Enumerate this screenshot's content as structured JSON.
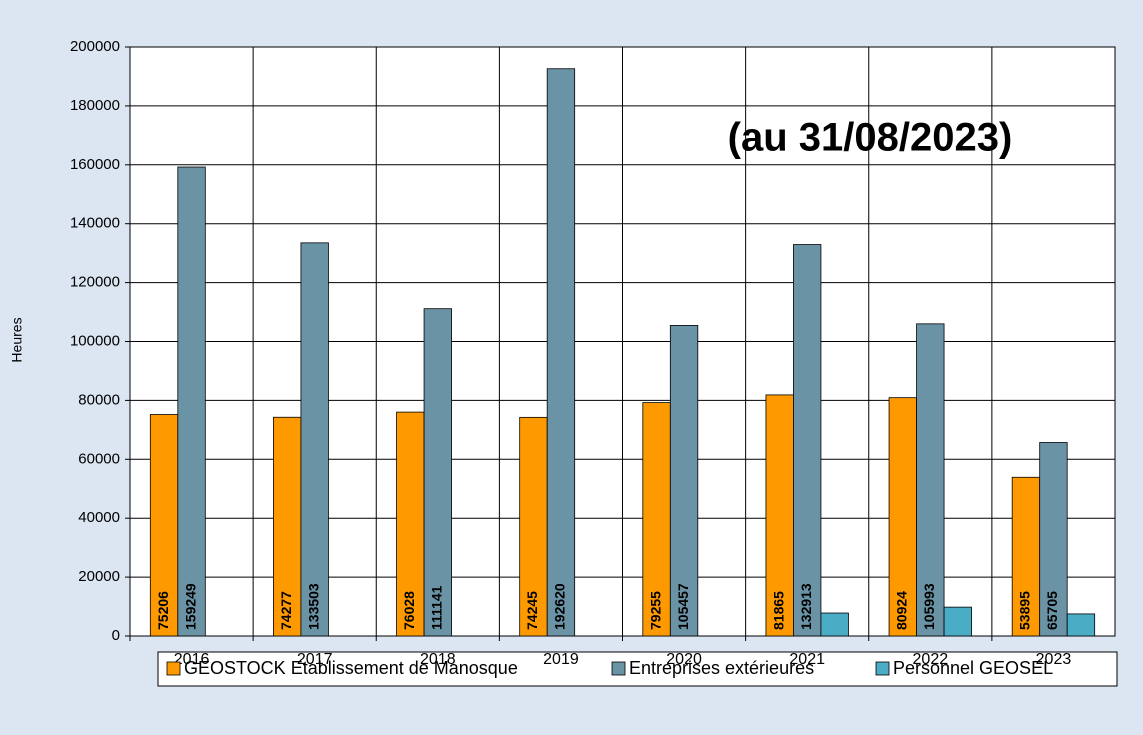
{
  "chart_data": {
    "type": "bar",
    "annotation": "(au 31/08/2023)",
    "y_label": "Heures",
    "categories": [
      "2016",
      "2017",
      "2018",
      "2019",
      "2020",
      "2021",
      "2022",
      "2023"
    ],
    "series": [
      {
        "name": "GEOSTOCK Etablissement de Manosque",
        "color": "#ff9900",
        "labels": true,
        "values": [
          75206,
          74277,
          76028,
          74245,
          79255,
          81865,
          80924,
          53895
        ]
      },
      {
        "name": "Entreprises extérieures",
        "color": "#6a93a6",
        "labels": true,
        "values": [
          159249,
          133503,
          111141,
          192620,
          105457,
          132913,
          105993,
          65705
        ]
      },
      {
        "name": "Personnel GEOSEL",
        "color": "#4bacc6",
        "labels": false,
        "values": [
          null,
          null,
          null,
          null,
          null,
          7800,
          9800,
          7500
        ]
      }
    ],
    "ylim": [
      0,
      200000
    ],
    "yticks": [
      0,
      20000,
      40000,
      60000,
      80000,
      100000,
      120000,
      140000,
      160000,
      180000,
      200000
    ],
    "grid": true
  }
}
